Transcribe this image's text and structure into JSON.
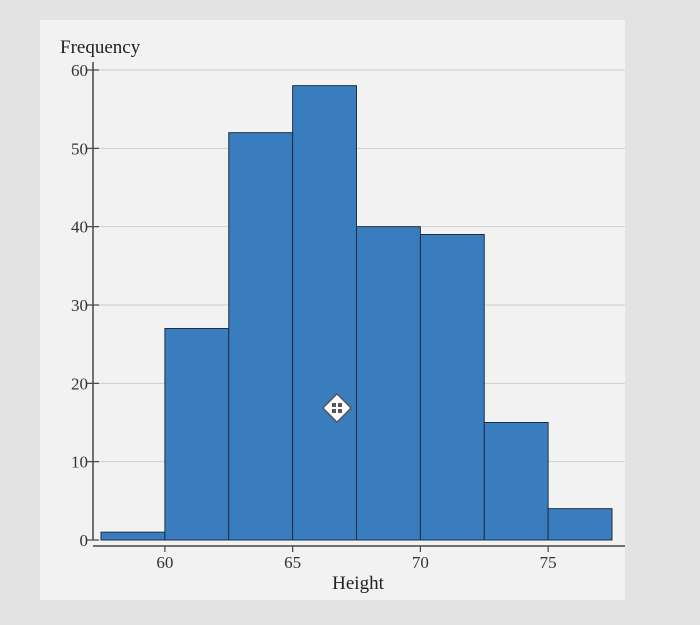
{
  "chart_data": {
    "type": "bar",
    "subtype": "histogram",
    "xlabel": "Height",
    "ylabel": "Frequency",
    "bins": [
      {
        "from": 57.5,
        "to": 60.0,
        "value": 1
      },
      {
        "from": 60.0,
        "to": 62.5,
        "value": 27
      },
      {
        "from": 62.5,
        "to": 65.0,
        "value": 52
      },
      {
        "from": 65.0,
        "to": 67.5,
        "value": 58
      },
      {
        "from": 67.5,
        "to": 70.0,
        "value": 40
      },
      {
        "from": 70.0,
        "to": 72.5,
        "value": 39
      },
      {
        "from": 72.5,
        "to": 75.0,
        "value": 15
      },
      {
        "from": 75.0,
        "to": 77.5,
        "value": 4
      }
    ],
    "x_ticks": [
      60,
      65,
      70,
      75
    ],
    "y_ticks": [
      0,
      10,
      20,
      30,
      40,
      50,
      60
    ],
    "xlim": [
      57.5,
      77.5
    ],
    "ylim": [
      0,
      60
    ],
    "grid": "horizontal",
    "legend": "none",
    "colors": {
      "bar": "#3a7dbf",
      "bar_edge": "#1c2f44",
      "axis": "#444444",
      "grid": "#cfcfcf"
    }
  },
  "overlay": {
    "icon": "move-handle-icon"
  }
}
